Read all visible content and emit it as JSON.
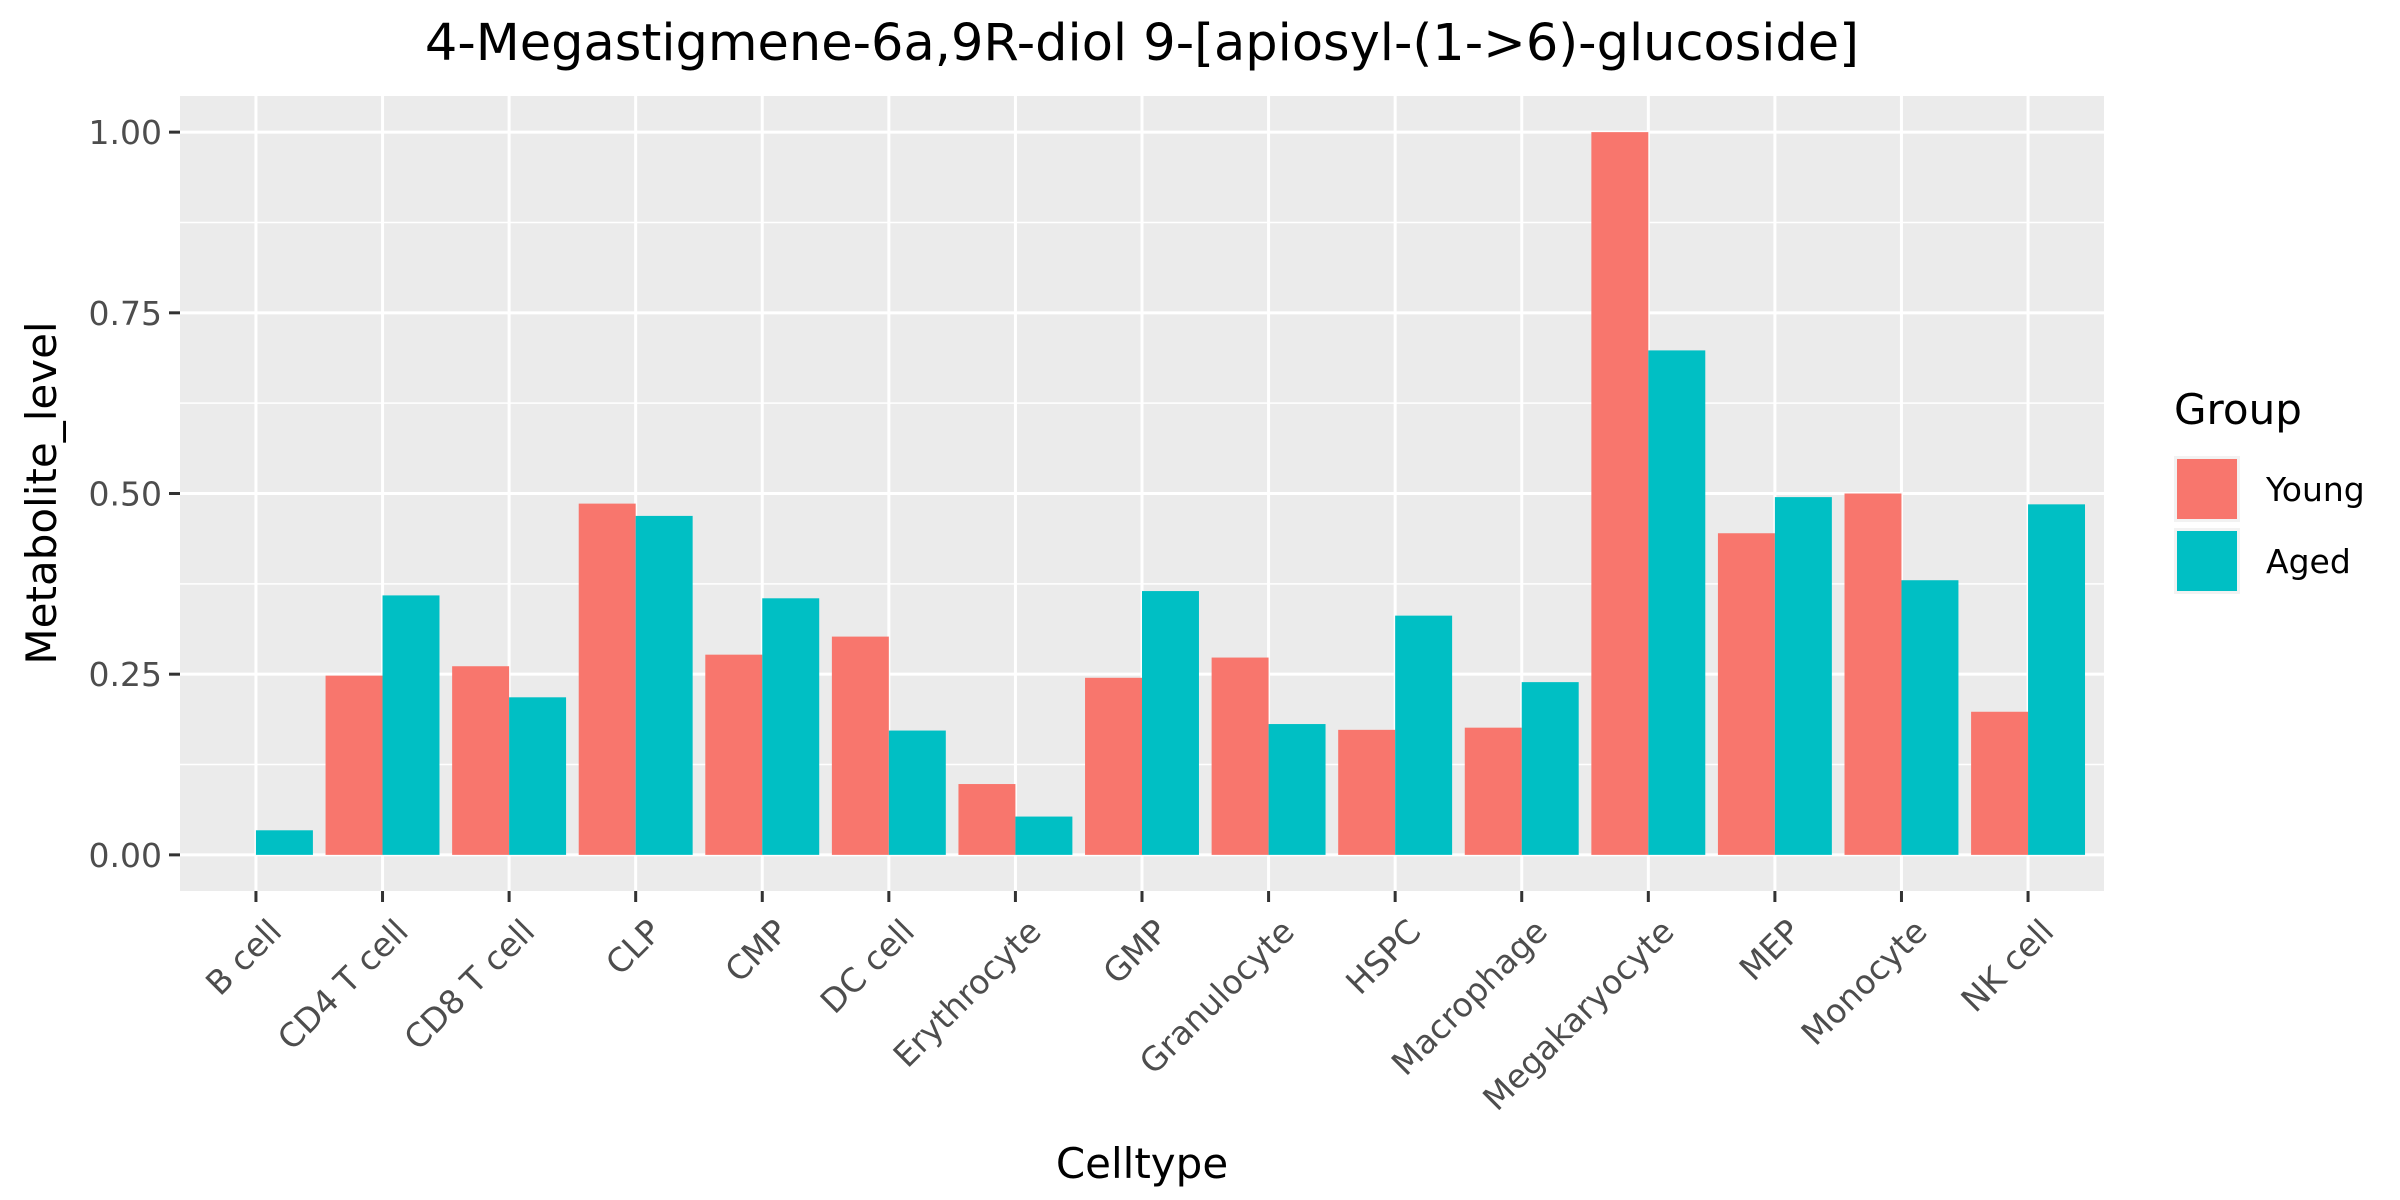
{
  "chart_data": {
    "type": "bar",
    "title": "4-Megastigmene-6a,9R-diol 9-[apiosyl-(1->6)-glucoside]",
    "xlabel": "Celltype",
    "ylabel": "Metabolite_level",
    "categories": [
      "B cell",
      "CD4 T cell",
      "CD8 T cell",
      "CLP",
      "CMP",
      "DC cell",
      "Erythrocyte",
      "GMP",
      "Granulocyte",
      "HSPC",
      "Macrophage",
      "Megakaryocyte",
      "MEP",
      "Monocyte",
      "NK cell"
    ],
    "series": [
      {
        "name": "Young",
        "color": "#F8766D",
        "values": [
          0.0,
          0.248,
          0.261,
          0.486,
          0.277,
          0.302,
          0.098,
          0.245,
          0.273,
          0.173,
          0.176,
          1.0,
          0.445,
          0.5,
          0.198
        ]
      },
      {
        "name": "Aged",
        "color": "#00BFC4",
        "values": [
          0.034,
          0.359,
          0.218,
          0.469,
          0.355,
          0.172,
          0.053,
          0.365,
          0.181,
          0.331,
          0.239,
          0.698,
          0.495,
          0.38,
          0.485
        ]
      }
    ],
    "ylim": [
      -0.05,
      1.05
    ],
    "yticks": [
      0.0,
      0.25,
      0.5,
      0.75,
      1.0
    ],
    "ytick_labels": [
      "0.00",
      "0.25",
      "0.50",
      "0.75",
      "1.00"
    ],
    "grid": true,
    "legend": {
      "title": "Group",
      "position": "right"
    }
  }
}
